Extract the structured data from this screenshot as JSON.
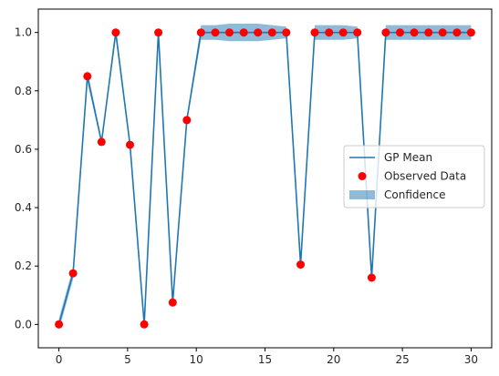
{
  "chart_data": {
    "type": "line",
    "title": "",
    "xlabel": "",
    "ylabel": "",
    "xlim": [
      -1.5,
      31.5
    ],
    "ylim": [
      -0.08,
      1.08
    ],
    "x_ticks": [
      0,
      5,
      10,
      15,
      20,
      25,
      30
    ],
    "y_ticks": [
      0.0,
      0.2,
      0.4,
      0.6,
      0.8,
      1.0
    ],
    "grid": false,
    "legend": {
      "position": "center-right",
      "entries": [
        {
          "label": "GP Mean",
          "kind": "line",
          "color": "#1f77b4"
        },
        {
          "label": "Observed Data",
          "kind": "marker",
          "color": "#ff0000"
        },
        {
          "label": "Confidence",
          "kind": "patch",
          "color": "#1f77b4",
          "opacity": 0.5
        }
      ]
    },
    "series": [
      {
        "name": "GP Mean",
        "kind": "line",
        "color": "#1f77b4",
        "x": [
          0,
          1.03,
          2.07,
          3.1,
          4.14,
          5.17,
          6.21,
          7.24,
          8.28,
          9.31,
          10.34,
          11.38,
          12.41,
          13.45,
          14.48,
          15.52,
          16.55,
          17.59,
          18.62,
          19.66,
          20.69,
          21.72,
          22.76,
          23.79,
          24.83,
          25.86,
          26.9,
          27.93,
          28.97,
          30
        ],
        "y": [
          0.0,
          0.175,
          0.85,
          0.625,
          1.0,
          0.615,
          0.0,
          1.0,
          0.075,
          0.7,
          1.0,
          1.0,
          1.0,
          1.0,
          1.0,
          1.0,
          1.0,
          0.205,
          1.0,
          1.0,
          1.0,
          1.0,
          0.16,
          1.0,
          1.0,
          1.0,
          1.0,
          1.0,
          1.0,
          1.0
        ]
      },
      {
        "name": "Observed Data",
        "kind": "scatter",
        "color": "#ff0000",
        "x": [
          0,
          1.03,
          2.07,
          3.1,
          4.14,
          5.17,
          6.21,
          7.24,
          8.28,
          9.31,
          10.34,
          11.38,
          12.41,
          13.45,
          14.48,
          15.52,
          16.55,
          17.59,
          18.62,
          19.66,
          20.69,
          21.72,
          22.76,
          23.79,
          24.83,
          25.86,
          26.9,
          27.93,
          28.97,
          30
        ],
        "y": [
          0.0,
          0.175,
          0.85,
          0.625,
          1.0,
          0.615,
          0.0,
          1.0,
          0.075,
          0.7,
          1.0,
          1.0,
          1.0,
          1.0,
          1.0,
          1.0,
          1.0,
          0.205,
          1.0,
          1.0,
          1.0,
          1.0,
          0.16,
          1.0,
          1.0,
          1.0,
          1.0,
          1.0,
          1.0,
          1.0
        ]
      },
      {
        "name": "Confidence",
        "kind": "band",
        "color": "#1f77b4",
        "opacity": 0.5,
        "half_width": [
          0.02,
          0.02,
          0.02,
          0.01,
          0.02,
          0.01,
          0.01,
          0.02,
          0.01,
          0.01,
          0.025,
          0.025,
          0.03,
          0.03,
          0.03,
          0.025,
          0.02,
          0.02,
          0.025,
          0.025,
          0.025,
          0.02,
          0.02,
          0.025,
          0.025,
          0.025,
          0.025,
          0.025,
          0.025,
          0.025
        ]
      }
    ]
  }
}
